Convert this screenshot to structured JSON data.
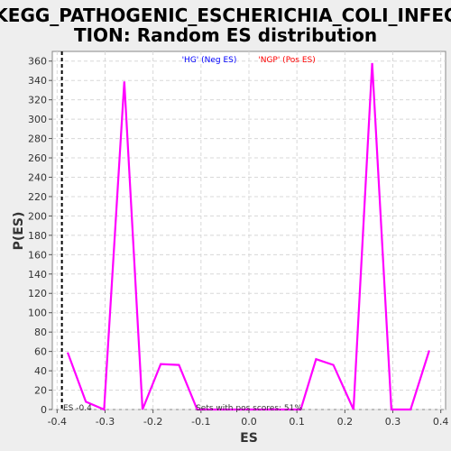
{
  "colors": {
    "background": "#eeeeee",
    "plot_bg": "#ffffff",
    "line": "#ff00ff",
    "grid": "#d8d8d8",
    "neg_legend": "#0000ff",
    "pos_legend": "#ff0000"
  },
  "chart_data": {
    "type": "line",
    "title": "KEGG_PATHOGENIC_ESCHERICHIA_COLI_INFECTION: Random ES distribution",
    "title_lines": [
      "KEGG_PATHOGENIC_ESCHERICHIA_COLI_INFEC",
      "TION: Random ES distribution"
    ],
    "xlabel": "ES",
    "ylabel": "P(ES)",
    "xlim": [
      -0.41,
      0.41
    ],
    "ylim": [
      0,
      370
    ],
    "grid": true,
    "x_ticks": [
      -0.4,
      -0.3,
      -0.2,
      -0.1,
      0.0,
      0.1,
      0.2,
      0.3,
      0.4
    ],
    "x_tick_labels": [
      "-0.4",
      "-0.3",
      "-0.2",
      "-0.1",
      "0.0",
      "0.1",
      "0.2",
      "0.3",
      "0.4"
    ],
    "y_ticks": [
      0,
      20,
      40,
      60,
      80,
      100,
      120,
      140,
      160,
      180,
      200,
      220,
      240,
      260,
      280,
      300,
      320,
      340,
      360
    ],
    "legend": {
      "neg": "'HG' (Neg ES)",
      "pos": "'NGP' (Pos ES)",
      "placement": "top-center"
    },
    "series": [
      {
        "x": [
          -0.378,
          -0.34,
          -0.302,
          -0.26,
          -0.222,
          -0.184,
          -0.146,
          -0.108,
          -0.07,
          -0.032,
          0.0,
          0.032,
          0.07,
          0.108,
          0.14,
          0.176,
          0.218,
          0.257,
          0.297,
          0.337,
          0.376
        ],
        "values": [
          59,
          8,
          0,
          339,
          0,
          47,
          46,
          0,
          0,
          0,
          0,
          0,
          0,
          0,
          52,
          46,
          0,
          358,
          0,
          0,
          61
        ]
      }
    ],
    "marker_line": {
      "x": -0.39,
      "style": "dashed",
      "label": "ES -0.4"
    },
    "annotation": "Sets with pos scores: 51%"
  }
}
